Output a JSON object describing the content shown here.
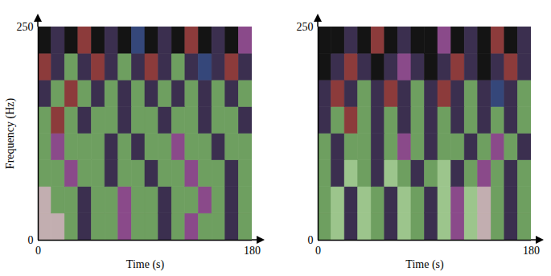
{
  "chart_data": [
    {
      "type": "heatmap",
      "x_label": "Time (s)",
      "y_label": "Frequency (Hz)",
      "xlim": [
        0,
        180
      ],
      "ylim": [
        0,
        250
      ],
      "xticks": [
        0,
        180
      ],
      "yticks": [
        0,
        250
      ],
      "cell_colors": [
        [
          "#c2aeb0",
          "#c2aeb0",
          "#6e9f60",
          "#3b2f4f",
          "#6e9f60",
          "#6e9f60",
          "#8a4a8a",
          "#6e9f60",
          "#6e9f60",
          "#3b2f4f",
          "#6e9f60",
          "#8a4a8a",
          "#6e9f60",
          "#6e9f60",
          "#3b2f4f",
          "#6e9f60"
        ],
        [
          "#c2aeb0",
          "#6e9f60",
          "#6e9f60",
          "#3b2f4f",
          "#6e9f60",
          "#6e9f60",
          "#8a4a8a",
          "#6e9f60",
          "#6e9f60",
          "#3b2f4f",
          "#6e9f60",
          "#6e9f60",
          "#8a4a8a",
          "#6e9f60",
          "#3b2f4f",
          "#6e9f60"
        ],
        [
          "#6e9f60",
          "#6e9f60",
          "#8a4a8a",
          "#6e9f60",
          "#6e9f60",
          "#3b2f4f",
          "#6e9f60",
          "#6e9f60",
          "#3b2f4f",
          "#6e9f60",
          "#6e9f60",
          "#8a4a8a",
          "#6e9f60",
          "#6e9f60",
          "#3b2f4f",
          "#6e9f60"
        ],
        [
          "#6e9f60",
          "#8a4a8a",
          "#6e9f60",
          "#6e9f60",
          "#6e9f60",
          "#3b2f4f",
          "#6e9f60",
          "#3b2f4f",
          "#6e9f60",
          "#6e9f60",
          "#8a4a8a",
          "#6e9f60",
          "#6e9f60",
          "#3b2f4f",
          "#6e9f60",
          "#6e9f60"
        ],
        [
          "#6e9f60",
          "#8c3b3b",
          "#6e9f60",
          "#3b2f4f",
          "#6e9f60",
          "#6e9f60",
          "#3b2f4f",
          "#6e9f60",
          "#6e9f60",
          "#3b2f4f",
          "#6e9f60",
          "#6e9f60",
          "#3b2f4f",
          "#6e9f60",
          "#6e9f60",
          "#3b2f4f"
        ],
        [
          "#3b2f4f",
          "#6e9f60",
          "#8c3b3b",
          "#6e9f60",
          "#3b2f4f",
          "#6e9f60",
          "#3b2f4f",
          "#6e9f60",
          "#3b2f4f",
          "#6e9f60",
          "#3b2f4f",
          "#6e9f60",
          "#3b2f4f",
          "#6e9f60",
          "#3b2f4f",
          "#6e9f60"
        ],
        [
          "#8c3b3b",
          "#3b2f4f",
          "#6e9f60",
          "#3b2f4f",
          "#8c3b3b",
          "#3b2f4f",
          "#6e9f60",
          "#3b2f4f",
          "#8c3b3b",
          "#3b2f4f",
          "#6e9f60",
          "#3b2f4f",
          "#35477a",
          "#3b2f4f",
          "#8c3b3b",
          "#3b2f4f"
        ],
        [
          "#141414",
          "#3b2f4f",
          "#141414",
          "#8c3b3b",
          "#141414",
          "#3b2f4f",
          "#141414",
          "#35477a",
          "#141414",
          "#3b2f4f",
          "#141414",
          "#8c3b3b",
          "#141414",
          "#3b2f4f",
          "#141414",
          "#8a4a8a"
        ]
      ]
    },
    {
      "type": "heatmap",
      "x_label": "Time (s)",
      "xlim": [
        0,
        180
      ],
      "ylim": [
        0,
        250
      ],
      "xticks": [
        0,
        180
      ],
      "yticks": [
        0,
        250
      ],
      "cell_colors": [
        [
          "#6e9f60",
          "#9cc58c",
          "#3b2f4f",
          "#9cc58c",
          "#6e9f60",
          "#3b2f4f",
          "#9cc58c",
          "#6e9f60",
          "#3b2f4f",
          "#9cc58c",
          "#8a4a8a",
          "#9cc58c",
          "#c2aeb0",
          "#6e9f60",
          "#3b2f4f",
          "#6e9f60"
        ],
        [
          "#6e9f60",
          "#9cc58c",
          "#3b2f4f",
          "#9cc58c",
          "#6e9f60",
          "#3b2f4f",
          "#9cc58c",
          "#6e9f60",
          "#3b2f4f",
          "#9cc58c",
          "#8a4a8a",
          "#9cc58c",
          "#c2aeb0",
          "#6e9f60",
          "#3b2f4f",
          "#6e9f60"
        ],
        [
          "#6e9f60",
          "#3b2f4f",
          "#9cc58c",
          "#6e9f60",
          "#3b2f4f",
          "#9cc58c",
          "#6e9f60",
          "#3b2f4f",
          "#6e9f60",
          "#9cc58c",
          "#3b2f4f",
          "#6e9f60",
          "#8a4a8a",
          "#6e9f60",
          "#3b2f4f",
          "#6e9f60"
        ],
        [
          "#6e9f60",
          "#3b2f4f",
          "#6e9f60",
          "#6e9f60",
          "#3b2f4f",
          "#6e9f60",
          "#8a4a8a",
          "#6e9f60",
          "#3b2f4f",
          "#6e9f60",
          "#6e9f60",
          "#3b2f4f",
          "#6e9f60",
          "#8a4a8a",
          "#6e9f60",
          "#3b2f4f"
        ],
        [
          "#3b2f4f",
          "#6e9f60",
          "#8c3b3b",
          "#6e9f60",
          "#3b2f4f",
          "#6e9f60",
          "#3b2f4f",
          "#6e9f60",
          "#3b2f4f",
          "#6e9f60",
          "#3b2f4f",
          "#6e9f60",
          "#3b2f4f",
          "#6e9f60",
          "#3b2f4f",
          "#6e9f60"
        ],
        [
          "#3b2f4f",
          "#8c3b3b",
          "#3b2f4f",
          "#6e9f60",
          "#3b2f4f",
          "#8c3b3b",
          "#3b2f4f",
          "#6e9f60",
          "#3b2f4f",
          "#8c3b3b",
          "#3b2f4f",
          "#6e9f60",
          "#3b2f4f",
          "#35477a",
          "#3b2f4f",
          "#6e9f60"
        ],
        [
          "#141414",
          "#3b2f4f",
          "#8c3b3b",
          "#3b2f4f",
          "#141414",
          "#3b2f4f",
          "#8a4a8a",
          "#3b2f4f",
          "#141414",
          "#3b2f4f",
          "#8c3b3b",
          "#3b2f4f",
          "#141414",
          "#3b2f4f",
          "#8c3b3b",
          "#3b2f4f"
        ],
        [
          "#141414",
          "#141414",
          "#3b2f4f",
          "#141414",
          "#8c3b3b",
          "#141414",
          "#3b2f4f",
          "#141414",
          "#141414",
          "#8a4a8a",
          "#141414",
          "#3b2f4f",
          "#141414",
          "#8c3b3b",
          "#141414",
          "#3b2f4f"
        ]
      ]
    }
  ]
}
